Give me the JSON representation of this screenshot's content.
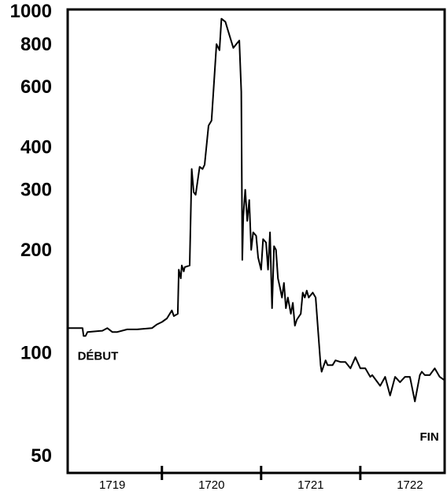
{
  "chart_data": {
    "type": "line",
    "scale": "log",
    "ylim": [
      45,
      1000
    ],
    "xlim": [
      1718.55,
      1722.35
    ],
    "y_ticks": [
      {
        "value": 50,
        "label": "50"
      },
      {
        "value": 100,
        "label": "100"
      },
      {
        "value": 200,
        "label": "200"
      },
      {
        "value": 300,
        "label": "300"
      },
      {
        "value": 400,
        "label": "400"
      },
      {
        "value": 600,
        "label": "600"
      },
      {
        "value": 800,
        "label": "800"
      },
      {
        "value": 1000,
        "label": "1000"
      }
    ],
    "x_tick_marks": [
      1719.5,
      1720.5,
      1721.5
    ],
    "x_labels": [
      {
        "value": 1719,
        "label": "1719"
      },
      {
        "value": 1720,
        "label": "1720"
      },
      {
        "value": 1721,
        "label": "1721"
      },
      {
        "value": 1722,
        "label": "1722"
      }
    ],
    "annotations": [
      {
        "text": "DÉBUT",
        "x": 1718.65,
        "y": 100
      },
      {
        "text": "FIN",
        "x": 1722.1,
        "y": 58
      }
    ],
    "series": [
      {
        "color": "#000000",
        "x": [
          1718.55,
          1718.7,
          1718.71,
          1718.73,
          1718.75,
          1718.9,
          1718.95,
          1719.0,
          1719.05,
          1719.15,
          1719.2,
          1719.25,
          1719.4,
          1719.45,
          1719.5,
          1719.55,
          1719.6,
          1719.62,
          1719.66,
          1719.67,
          1719.69,
          1719.7,
          1719.72,
          1719.73,
          1719.78,
          1719.8,
          1719.82,
          1719.84,
          1719.88,
          1719.91,
          1719.93,
          1719.97,
          1720.0,
          1720.05,
          1720.08,
          1720.1,
          1720.14,
          1720.18,
          1720.22,
          1720.25,
          1720.28,
          1720.3,
          1720.31,
          1720.32,
          1720.34,
          1720.36,
          1720.38,
          1720.4,
          1720.42,
          1720.45,
          1720.47,
          1720.5,
          1720.52,
          1720.55,
          1720.57,
          1720.59,
          1720.61,
          1720.63,
          1720.65,
          1720.67,
          1720.69,
          1720.71,
          1720.73,
          1720.75,
          1720.77,
          1720.8,
          1720.82,
          1720.84,
          1720.86,
          1720.9,
          1720.92,
          1720.94,
          1720.96,
          1720.98,
          1721.02,
          1721.05,
          1721.1,
          1721.11,
          1721.15,
          1721.17,
          1721.22,
          1721.25,
          1721.3,
          1721.35,
          1721.4,
          1721.45,
          1721.5,
          1721.55,
          1721.6,
          1721.62,
          1721.7,
          1721.75,
          1721.8,
          1721.85,
          1721.9,
          1721.95,
          1722.0,
          1722.05,
          1722.1,
          1722.12,
          1722.15,
          1722.2,
          1722.25,
          1722.3,
          1722.35
        ],
        "y": [
          118,
          118,
          112,
          112,
          115,
          116,
          118,
          115,
          115,
          117,
          117,
          117,
          118,
          121,
          123,
          126,
          133,
          128,
          130,
          175,
          165,
          180,
          173,
          178,
          180,
          345,
          295,
          290,
          350,
          345,
          355,
          462,
          478,
          800,
          768,
          950,
          930,
          850,
          780,
          800,
          820,
          580,
          187,
          250,
          300,
          243,
          280,
          200,
          225,
          220,
          190,
          175,
          215,
          210,
          175,
          225,
          135,
          205,
          200,
          165,
          155,
          145,
          160,
          135,
          145,
          130,
          140,
          120,
          125,
          130,
          150,
          145,
          152,
          145,
          150,
          145,
          92,
          88,
          95,
          92,
          92,
          95,
          94,
          94,
          90,
          97,
          90,
          90,
          85,
          86,
          80,
          85,
          75,
          85,
          82,
          85,
          85,
          72,
          86,
          88,
          86,
          86,
          90,
          85,
          83
        ]
      }
    ]
  }
}
